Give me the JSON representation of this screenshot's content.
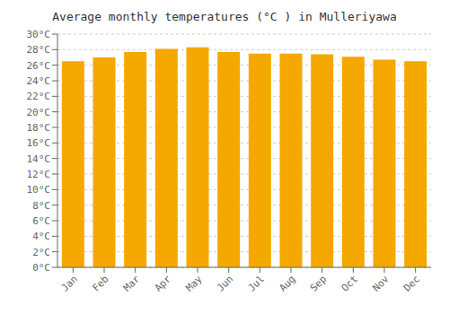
{
  "chart_data": {
    "type": "bar",
    "title": "Average monthly temperatures (°C ) in Mulleriyawa",
    "categories": [
      "Jan",
      "Feb",
      "Mar",
      "Apr",
      "May",
      "Jun",
      "Jul",
      "Aug",
      "Sep",
      "Oct",
      "Nov",
      "Dec"
    ],
    "values": [
      26.5,
      27.0,
      27.7,
      28.1,
      28.3,
      27.7,
      27.5,
      27.5,
      27.4,
      27.1,
      26.7,
      26.5
    ],
    "color": "#F5A800",
    "ylim": [
      0,
      30
    ],
    "yticks": [
      {
        "value": 0,
        "label": "0°C"
      },
      {
        "value": 2,
        "label": "2°C"
      },
      {
        "value": 4,
        "label": "4°C"
      },
      {
        "value": 6,
        "label": "6°C"
      },
      {
        "value": 8,
        "label": "8°C"
      },
      {
        "value": 10,
        "label": "10°C"
      },
      {
        "value": 12,
        "label": "12°C"
      },
      {
        "value": 14,
        "label": "14°C"
      },
      {
        "value": 16,
        "label": "16°C"
      },
      {
        "value": 18,
        "label": "18°C"
      },
      {
        "value": 20,
        "label": "20°C"
      },
      {
        "value": 22,
        "label": "22°C"
      },
      {
        "value": 24,
        "label": "24°C"
      },
      {
        "value": 26,
        "label": "26°C"
      },
      {
        "value": 28,
        "label": "28°C"
      },
      {
        "value": 30,
        "label": "30°C"
      }
    ],
    "grid": true
  }
}
